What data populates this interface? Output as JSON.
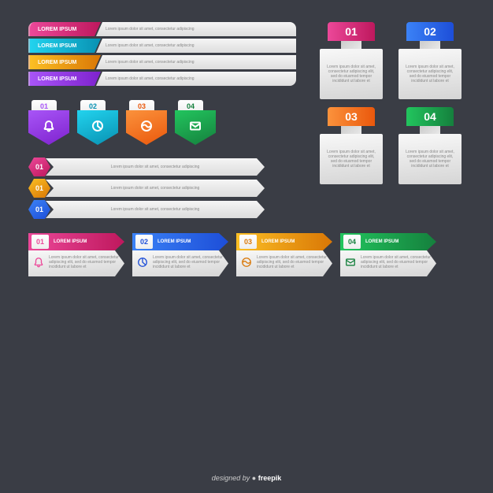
{
  "background": "#3a3d45",
  "placeholder_title": "LOREM IPSUM",
  "placeholder_short": "Lorem ipsum dolor sit amet, consectetur adipiscing",
  "placeholder_long": "Lorem ipsum dolor sit amet, consectetur adipiscing elit, sed do eiusmod tempor incididunt ut labore et",
  "gradients": {
    "pink": [
      "#ec4899",
      "#be185d"
    ],
    "orange": [
      "#fb923c",
      "#ea580c"
    ],
    "yellow": [
      "#fbbf24",
      "#d97706"
    ],
    "cyan": [
      "#22d3ee",
      "#0891b2"
    ],
    "purple": [
      "#a855f7",
      "#7e22ce"
    ],
    "blue": [
      "#3b82f6",
      "#1d4ed8"
    ],
    "green": [
      "#22c55e",
      "#15803d"
    ]
  },
  "section1_bars": {
    "type": "horizontal-label-bars",
    "rows": [
      {
        "label": "LOREM IPSUM",
        "grad": "pink"
      },
      {
        "label": "LOREM IPSUM",
        "grad": "cyan"
      },
      {
        "label": "LOREM IPSUM",
        "grad": "yellow"
      },
      {
        "label": "LOREM IPSUM",
        "grad": "purple"
      }
    ]
  },
  "section2_columns": {
    "type": "numbered-column-cards",
    "items": [
      {
        "num": "01",
        "grad": "pink"
      },
      {
        "num": "02",
        "grad": "blue"
      },
      {
        "num": "03",
        "grad": "orange"
      },
      {
        "num": "04",
        "grad": "green"
      }
    ]
  },
  "section3_badges": {
    "type": "icon-pentagon-badges",
    "items": [
      {
        "num": "01",
        "grad": "purple",
        "icon": "bell",
        "num_color": "#a855f7"
      },
      {
        "num": "02",
        "grad": "cyan",
        "icon": "pie",
        "num_color": "#0891b2"
      },
      {
        "num": "03",
        "grad": "orange",
        "icon": "wave",
        "num_color": "#ea580c"
      },
      {
        "num": "04",
        "grad": "green",
        "icon": "mail",
        "num_color": "#15803d"
      }
    ]
  },
  "section4_hex": {
    "type": "hexagon-arrow-rows",
    "rows": [
      {
        "num": "01",
        "grad": "pink"
      },
      {
        "num": "01",
        "grad": "yellow"
      },
      {
        "num": "01",
        "grad": "blue"
      }
    ]
  },
  "section5_arrows": {
    "type": "arrow-step-cards",
    "items": [
      {
        "num": "01",
        "title": "LOREM IPSUM",
        "grad": "pink",
        "icon": "bell",
        "num_color": "#ec4899"
      },
      {
        "num": "02",
        "title": "LOREM IPSUM",
        "grad": "blue",
        "icon": "pie",
        "num_color": "#1d4ed8"
      },
      {
        "num": "03",
        "title": "LOREM IPSUM",
        "grad": "yellow",
        "icon": "wave",
        "num_color": "#d97706"
      },
      {
        "num": "04",
        "title": "LOREM IPSUM",
        "grad": "green",
        "icon": "mail",
        "num_color": "#15803d"
      }
    ]
  },
  "credit": {
    "prefix": "designed by ",
    "brand": "freepik"
  }
}
